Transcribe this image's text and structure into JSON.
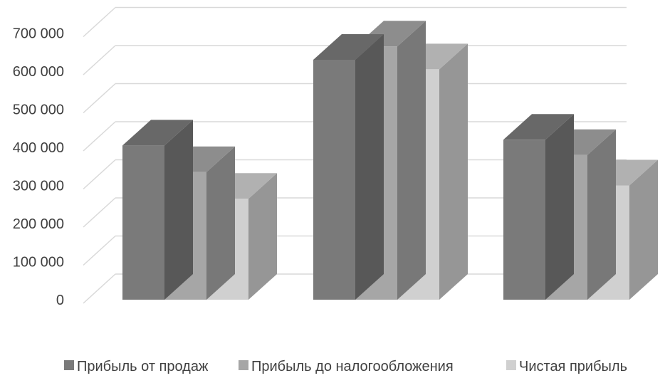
{
  "chart_data": {
    "type": "bar",
    "style": "3d-clustered-column",
    "categories": [
      "",
      "",
      ""
    ],
    "series": [
      {
        "name": "Прибыль от продаж",
        "values": [
          405000,
          630000,
          420000
        ],
        "color": "#7a7a7a"
      },
      {
        "name": "Прибыль до налогообложения",
        "values": [
          335000,
          665000,
          380000
        ],
        "color": "#a6a6a6"
      },
      {
        "name": "Чистая прибыль",
        "values": [
          265000,
          605000,
          300000
        ],
        "color": "#d0d0d0"
      }
    ],
    "yticks": [
      "0",
      "100 000",
      "200 000",
      "300 000",
      "400 000",
      "500 000",
      "600 000",
      "700 000"
    ],
    "ylim": [
      0,
      700000
    ],
    "grid": true,
    "legend_position": "bottom",
    "title": "",
    "xlabel": "",
    "ylabel": ""
  }
}
